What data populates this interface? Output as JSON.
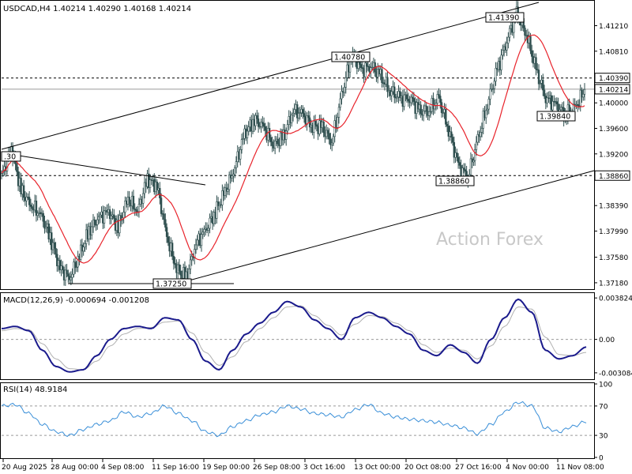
{
  "chart_data": [
    {
      "panel": "price",
      "type": "candlestick",
      "title": "USDCAD,H4  1.40214 1.40290 1.40168 1.40214",
      "symbol": "USDCAD",
      "timeframe": "H4",
      "ohlc_readout": [
        1.40214,
        1.4029,
        1.40168,
        1.40214
      ],
      "ylim": [
        1.3708,
        1.416
      ],
      "y_tick_labels": [
        "1.41210",
        "1.40810",
        "1.40390",
        "1.40214",
        "1.40000",
        "1.39600",
        "1.39200",
        "1.38860",
        "1.38390",
        "1.37990",
        "1.37580",
        "1.37180"
      ],
      "x_tick_labels": [
        "20 Aug 2025",
        "28 Aug 00:00",
        "4 Sep 08:00",
        "11 Sep 16:00",
        "19 Sep 00:00",
        "26 Sep 08:00",
        "3 Oct 16:00",
        "13 Oct 00:00",
        "20 Oct 08:00",
        "27 Oct 16:00",
        "4 Nov 00:00",
        "11 Nov 08:00"
      ],
      "highlighted_levels": {
        "resistance": 1.4039,
        "current": 1.40214,
        "support": 1.3886
      },
      "annotations": [
        {
          "label": "1.41390",
          "value": 1.4139
        },
        {
          "label": "1.40780",
          "value": 1.4078
        },
        {
          "label": "1.39840",
          "value": 1.3984
        },
        {
          "label": "1.38860",
          "value": 1.3886
        },
        {
          "label": "1.37250",
          "value": 1.3725
        },
        {
          "label": ".30",
          "value": 1.393
        }
      ],
      "price_path": [
        1.3885,
        1.393,
        1.3862,
        1.384,
        1.3825,
        1.379,
        1.374,
        1.3725,
        1.376,
        1.38,
        1.382,
        1.383,
        1.3805,
        1.385,
        1.383,
        1.388,
        1.387,
        1.379,
        1.374,
        1.3725,
        1.378,
        1.38,
        1.383,
        1.386,
        1.39,
        1.395,
        1.3975,
        1.396,
        1.3935,
        1.3945,
        1.399,
        1.398,
        1.3965,
        1.396,
        1.394,
        1.401,
        1.4078,
        1.405,
        1.406,
        1.404,
        1.402,
        1.4005,
        1.401,
        1.3985,
        1.399,
        1.4005,
        1.396,
        1.39,
        1.3886,
        1.394,
        1.4,
        1.405,
        1.41,
        1.4139,
        1.411,
        1.405,
        1.401,
        1.3995,
        1.3984,
        1.399,
        1.4021
      ],
      "trendlines": [
        "upper channel line",
        "lower channel line",
        "falling resistance line",
        "support line at 1.37250"
      ],
      "moving_average": {
        "color": "#e8232b"
      },
      "candle_color": "#2f4f4f",
      "watermark": "Action Forex"
    },
    {
      "panel": "macd",
      "type": "line",
      "title": "MACD(12,26,9) -0.000694 -0.001208",
      "ylim": [
        -0.0036,
        0.0042
      ],
      "y_tick_labels": [
        "0.003824",
        "0.00",
        "-0.003084"
      ],
      "series": [
        {
          "name": "MACD",
          "color": "#1a1a8c",
          "values": [
            0.001,
            0.0012,
            0.0008,
            -0.001,
            -0.0025,
            -0.003,
            -0.0028,
            -0.0015,
            0.0,
            0.001,
            0.0012,
            0.001,
            0.002,
            0.0018,
            0.0,
            -0.002,
            -0.0028,
            -0.001,
            0.0005,
            0.0015,
            0.0025,
            0.0035,
            0.003,
            0.0018,
            0.001,
            0.0,
            0.002,
            0.0025,
            0.002,
            0.0012,
            0.0005,
            -0.001,
            -0.0015,
            -0.0005,
            -0.0012,
            -0.0022,
            0.0,
            0.002,
            0.0037,
            0.0025,
            -0.001,
            -0.0018,
            -0.0015,
            -0.0007
          ]
        },
        {
          "name": "Signal",
          "color": "#b0b0b0",
          "values": [
            0.0008,
            0.001,
            0.0009,
            -0.0004,
            -0.0018,
            -0.0027,
            -0.0028,
            -0.002,
            -0.0006,
            0.0005,
            0.001,
            0.0011,
            0.0016,
            0.0017,
            0.0006,
            -0.0012,
            -0.0024,
            -0.0016,
            -0.0002,
            0.001,
            0.002,
            0.003,
            0.0031,
            0.0022,
            0.0013,
            0.0004,
            0.0014,
            0.0022,
            0.0021,
            0.0015,
            0.0008,
            -0.0005,
            -0.0012,
            -0.0008,
            -0.001,
            -0.0018,
            -0.0006,
            0.0012,
            0.003,
            0.0028,
            0.0002,
            -0.0014,
            -0.0015,
            -0.0012
          ]
        }
      ]
    },
    {
      "panel": "rsi",
      "type": "line",
      "title": "RSI(14) 48.9184",
      "ylim": [
        0,
        100
      ],
      "y_tick_labels": [
        "100",
        "70",
        "30",
        "0"
      ],
      "levels": [
        70,
        30
      ],
      "series": [
        {
          "name": "RSI",
          "color": "#3a8fd8",
          "values": [
            70,
            72,
            60,
            45,
            35,
            30,
            38,
            45,
            50,
            62,
            55,
            60,
            70,
            60,
            50,
            35,
            30,
            42,
            50,
            58,
            62,
            70,
            66,
            60,
            58,
            55,
            65,
            72,
            60,
            55,
            52,
            50,
            48,
            44,
            40,
            32,
            45,
            62,
            75,
            70,
            40,
            35,
            42,
            49
          ]
        }
      ]
    }
  ]
}
